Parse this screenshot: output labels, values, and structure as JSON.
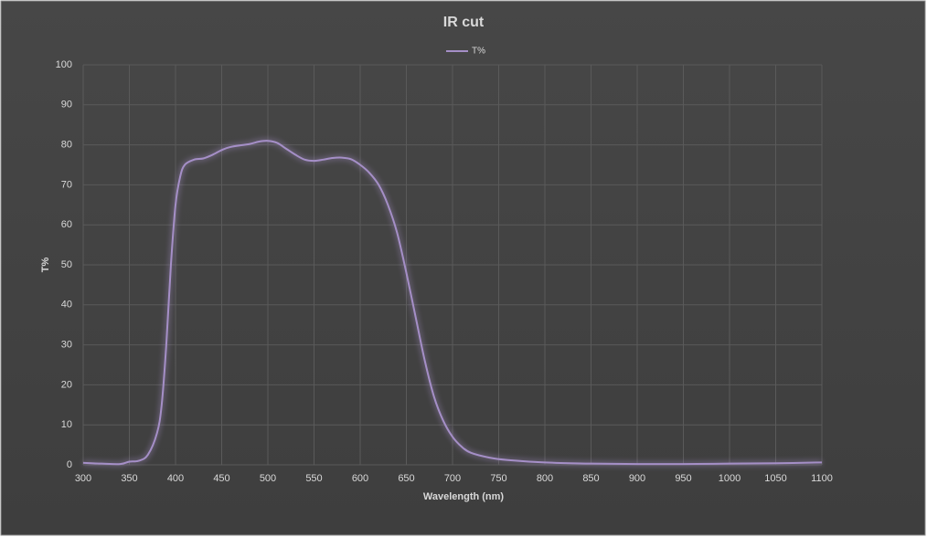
{
  "chart_data": {
    "type": "line",
    "title": "IR cut",
    "x_label": "Wavelength (nm)",
    "y_label": "T%",
    "x": [
      300,
      320,
      340,
      350,
      360,
      370,
      380,
      385,
      390,
      395,
      400,
      405,
      410,
      420,
      430,
      440,
      450,
      460,
      480,
      490,
      500,
      510,
      520,
      530,
      540,
      550,
      560,
      570,
      580,
      590,
      600,
      610,
      620,
      630,
      640,
      650,
      660,
      670,
      680,
      690,
      700,
      710,
      720,
      740,
      760,
      800,
      850,
      900,
      950,
      1000,
      1050,
      1100
    ],
    "series": [
      {
        "name": "T%",
        "color": "#a58fc7",
        "values": [
          0.5,
          0.3,
          0.2,
          0.8,
          1,
          2.5,
          8,
          15,
          30,
          50,
          65,
          72,
          75,
          76.3,
          76.6,
          77.5,
          78.7,
          79.5,
          80.2,
          80.8,
          81,
          80.5,
          79,
          77.5,
          76.3,
          76,
          76.3,
          76.7,
          76.8,
          76.4,
          75,
          73,
          70,
          65,
          58,
          48,
          37,
          26,
          17,
          11,
          7,
          4.5,
          3,
          1.8,
          1.2,
          0.6,
          0.3,
          0.2,
          0.2,
          0.3,
          0.4,
          0.6
        ]
      }
    ],
    "xlim": [
      300,
      1100
    ],
    "xticks": [
      300,
      350,
      400,
      450,
      500,
      550,
      600,
      650,
      700,
      750,
      800,
      850,
      900,
      950,
      1000,
      1050,
      1100
    ],
    "ylim": [
      0,
      100
    ],
    "yticks": [
      0,
      10,
      20,
      30,
      40,
      50,
      60,
      70,
      80,
      90,
      100
    ],
    "grid": true,
    "legend": "top"
  }
}
